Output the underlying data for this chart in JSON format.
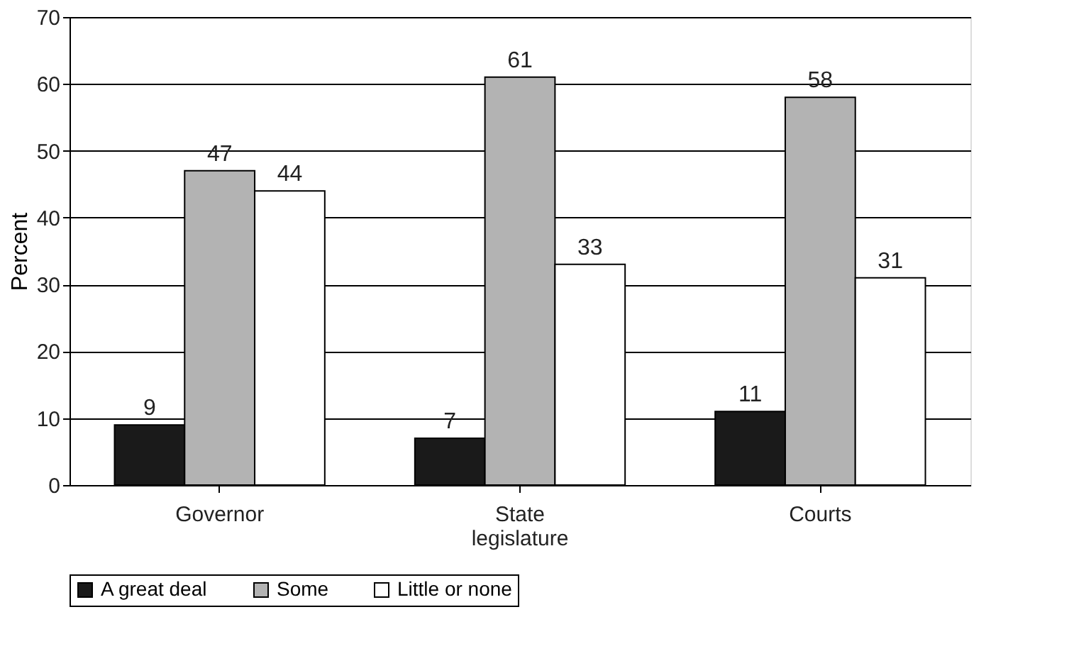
{
  "chart_data": {
    "type": "bar",
    "ylabel": "Percent",
    "categories": [
      "Governor",
      "State legislature",
      "Courts"
    ],
    "series": [
      {
        "name": "A great deal",
        "color": "#1a1a1a",
        "values": [
          9,
          7,
          11
        ]
      },
      {
        "name": "Some",
        "color": "#b3b3b3",
        "values": [
          47,
          61,
          58
        ]
      },
      {
        "name": "Little or none",
        "color": "#ffffff",
        "values": [
          44,
          33,
          31
        ]
      }
    ],
    "ylim": [
      0,
      70
    ],
    "yticks": [
      0,
      10,
      20,
      30,
      40,
      50,
      60,
      70
    ],
    "grid": "y",
    "legend": "bottom",
    "data_labels": true
  }
}
